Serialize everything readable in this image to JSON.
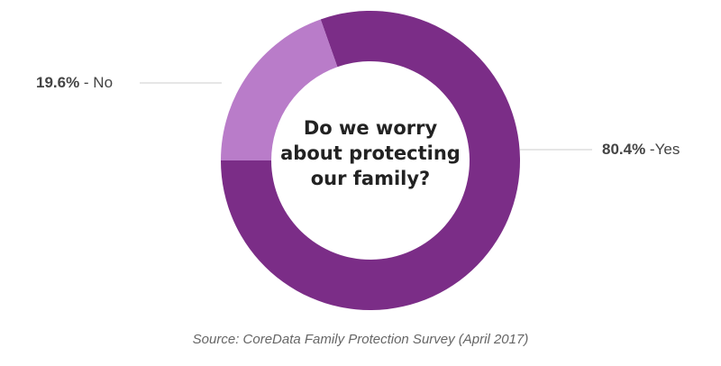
{
  "chart_data": {
    "type": "pie",
    "donut": true,
    "title": "Do we worry about protecting our family?",
    "slices": [
      {
        "label": "No",
        "value": 19.6,
        "display": "19.6%",
        "suffix": " - No",
        "color": "#b97cc9"
      },
      {
        "label": "Yes",
        "value": 80.4,
        "display": "80.4%",
        "suffix": " -Yes",
        "color": "#7b2d87"
      }
    ],
    "source": "Source: CoreData Family Protection Survey (April 2017)"
  }
}
